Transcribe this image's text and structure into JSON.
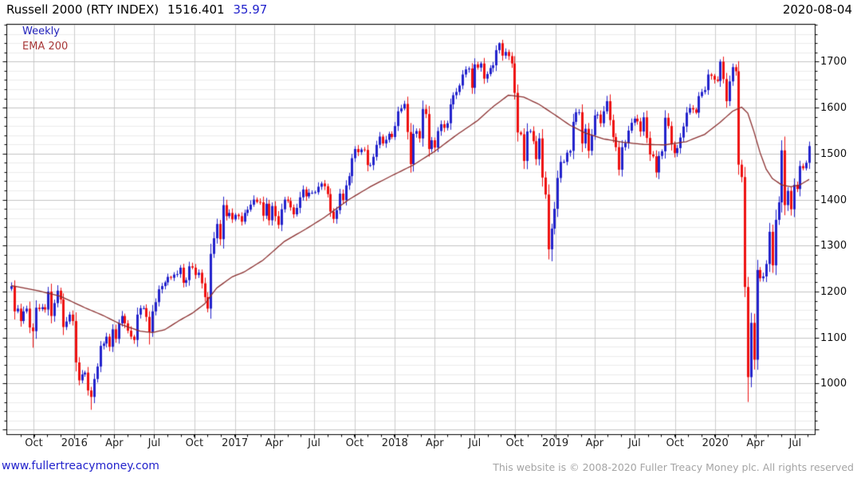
{
  "header": {
    "title": "Russell 2000 (RTY INDEX)",
    "last_price": "1516.401",
    "change": "35.97",
    "date": "2020-08-04"
  },
  "legend": {
    "timeframe": "Weekly",
    "overlay": "EMA 200"
  },
  "footer": {
    "site_link": "www.fullertreacymoney.com",
    "copyright": "This website is © 2008-2020 Fuller Treacy Money plc. All rights reserved"
  },
  "chart_data": {
    "type": "candlestick",
    "timeframe": "weekly",
    "title": "Russell 2000 (RTY INDEX)",
    "last_price": 1516.401,
    "change": 35.97,
    "grid": "on",
    "y_axis": {
      "min": 890,
      "max": 1782,
      "major_step": 100,
      "minor_step": 20,
      "labels": [
        1700,
        1600,
        1500,
        1400,
        1300,
        1200,
        1100,
        1000
      ]
    },
    "x_axis": {
      "weeks_total": 261,
      "start_week_label": "2015-08-10",
      "labels": [
        {
          "label": "Oct",
          "week": 7.4
        },
        {
          "label": "2016",
          "week": 20.6
        },
        {
          "label": "Apr",
          "week": 33.6
        },
        {
          "label": "Jul",
          "week": 46.6
        },
        {
          "label": "Oct",
          "week": 59.7
        },
        {
          "label": "2017",
          "week": 72.9
        },
        {
          "label": "Apr",
          "week": 85.7
        },
        {
          "label": "Jul",
          "week": 98.7
        },
        {
          "label": "Oct",
          "week": 111.9
        },
        {
          "label": "2018",
          "week": 125.0
        },
        {
          "label": "Apr",
          "week": 138.0
        },
        {
          "label": "Jul",
          "week": 151.0
        },
        {
          "label": "Oct",
          "week": 164.1
        },
        {
          "label": "2019",
          "week": 177.3
        },
        {
          "label": "Apr",
          "week": 190.1
        },
        {
          "label": "Jul",
          "week": 203.1
        },
        {
          "label": "Oct",
          "week": 216.3
        },
        {
          "label": "2020",
          "week": 229.4
        },
        {
          "label": "Apr",
          "week": 242.5
        },
        {
          "label": "Jul",
          "week": 255.4
        }
      ]
    },
    "first_open": 1206,
    "closes": [
      1212,
      1157,
      1163,
      1136,
      1157,
      1163,
      1122,
      1114,
      1165,
      1162,
      1166,
      1161,
      1200,
      1147,
      1175,
      1202,
      1183,
      1123,
      1135,
      1150,
      1136,
      1046,
      1007,
      1020,
      1024,
      985,
      971,
      1010,
      1037,
      1082,
      1087,
      1102,
      1080,
      1118,
      1097,
      1131,
      1147,
      1131,
      1115,
      1102,
      1095,
      1150,
      1164,
      1164,
      1145,
      1112,
      1157,
      1177,
      1205,
      1212,
      1220,
      1232,
      1230,
      1237,
      1238,
      1252,
      1219,
      1225,
      1255,
      1252,
      1236,
      1241,
      1218,
      1188,
      1163,
      1282,
      1316,
      1347,
      1314,
      1388,
      1364,
      1371,
      1357,
      1367,
      1364,
      1352,
      1371,
      1378,
      1389,
      1400,
      1395,
      1394,
      1365,
      1391,
      1355,
      1386,
      1364,
      1345,
      1379,
      1400,
      1397,
      1383,
      1368,
      1382,
      1405,
      1422,
      1407,
      1415,
      1415,
      1416,
      1428,
      1435,
      1429,
      1412,
      1374,
      1358,
      1377,
      1413,
      1399,
      1431,
      1451,
      1490,
      1510,
      1503,
      1509,
      1508,
      1475,
      1475,
      1493,
      1519,
      1537,
      1522,
      1530,
      1543,
      1536,
      1560,
      1592,
      1598,
      1608,
      1547,
      1477,
      1543,
      1549,
      1533,
      1597,
      1586,
      1510,
      1529,
      1513,
      1549,
      1564,
      1556,
      1566,
      1607,
      1627,
      1634,
      1648,
      1672,
      1683,
      1685,
      1643,
      1694,
      1687,
      1696,
      1663,
      1673,
      1686,
      1692,
      1725,
      1740,
      1713,
      1721,
      1712,
      1696,
      1632,
      1546,
      1542,
      1484,
      1548,
      1549,
      1527,
      1488,
      1533,
      1448,
      1411,
      1292,
      1337,
      1380,
      1447,
      1482,
      1482,
      1502,
      1506,
      1569,
      1590,
      1590,
      1522,
      1554,
      1506,
      1540,
      1583,
      1585,
      1566,
      1592,
      1614,
      1573,
      1536,
      1514,
      1465,
      1514,
      1523,
      1550,
      1567,
      1576,
      1570,
      1548,
      1579,
      1534,
      1498,
      1494,
      1459,
      1495,
      1505,
      1578,
      1560,
      1520,
      1501,
      1512,
      1535,
      1559,
      1589,
      1599,
      1596,
      1589,
      1625,
      1634,
      1638,
      1672,
      1669,
      1661,
      1658,
      1700,
      1662,
      1614,
      1657,
      1688,
      1679,
      1476,
      1449,
      1210,
      1014,
      1132,
      1052,
      1247,
      1229,
      1233,
      1260,
      1330,
      1257,
      1356,
      1394,
      1507,
      1388,
      1419,
      1379,
      1432,
      1423,
      1473,
      1468,
      1480,
      1516.4
    ],
    "wick_overrides": {
      "7": {
        "low": 1078
      },
      "26": {
        "low": 943
      },
      "45": {
        "low": 1085
      },
      "128": {
        "high": 1615
      },
      "159": {
        "high": 1742
      },
      "176": {
        "low": 1266
      },
      "231": {
        "high": 1705
      },
      "240": {
        "low": 960
      },
      "252": {
        "high": 1537
      }
    },
    "ema": {
      "label": "EMA 200",
      "anchors": [
        [
          0,
          1213
        ],
        [
          8,
          1203
        ],
        [
          16,
          1190
        ],
        [
          24,
          1165
        ],
        [
          30,
          1148
        ],
        [
          36,
          1128
        ],
        [
          42,
          1114
        ],
        [
          46,
          1111
        ],
        [
          50,
          1117
        ],
        [
          55,
          1138
        ],
        [
          59,
          1153
        ],
        [
          63,
          1173
        ],
        [
          67,
          1208
        ],
        [
          72,
          1232
        ],
        [
          76,
          1243
        ],
        [
          82,
          1268
        ],
        [
          89,
          1309
        ],
        [
          96,
          1336
        ],
        [
          102,
          1361
        ],
        [
          110,
          1400
        ],
        [
          117,
          1428
        ],
        [
          124,
          1452
        ],
        [
          131,
          1475
        ],
        [
          138,
          1505
        ],
        [
          145,
          1540
        ],
        [
          152,
          1572
        ],
        [
          157,
          1602
        ],
        [
          162,
          1627
        ],
        [
          167,
          1623
        ],
        [
          172,
          1607
        ],
        [
          177,
          1585
        ],
        [
          182,
          1562
        ],
        [
          187,
          1545
        ],
        [
          193,
          1532
        ],
        [
          199,
          1525
        ],
        [
          206,
          1520
        ],
        [
          213,
          1519
        ],
        [
          220,
          1526
        ],
        [
          226,
          1542
        ],
        [
          231,
          1568
        ],
        [
          235,
          1592
        ],
        [
          238,
          1601
        ],
        [
          240,
          1588
        ],
        [
          242,
          1548
        ],
        [
          244,
          1502
        ],
        [
          246,
          1466
        ],
        [
          248,
          1446
        ],
        [
          251,
          1432
        ],
        [
          254,
          1428
        ],
        [
          257,
          1432
        ],
        [
          260,
          1444
        ]
      ]
    },
    "colors": {
      "up": "#2222cc",
      "down": "#ee1111",
      "ema": "#8b2f2f",
      "grid_major": "#c4c4c4",
      "grid_minor": "#ebebeb",
      "grid_vertical": "#cccccc",
      "border": "#000000"
    }
  }
}
